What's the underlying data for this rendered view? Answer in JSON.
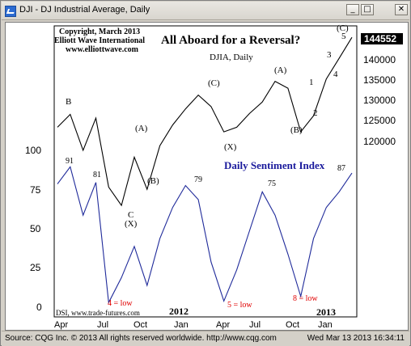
{
  "window": {
    "title": "DJI - DJ Industrial Average, Daily",
    "buttons": {
      "minimize": "_",
      "maximize": "□",
      "close": "✕"
    }
  },
  "header": {
    "copyright": "Copyright, March 2013",
    "company": "Elliott Wave International",
    "website": "www.elliottwave.com",
    "headline": "All Aboard for a Reversal?",
    "subtitle": "DJIA, Daily"
  },
  "price_axis": {
    "ticks": [
      "140000",
      "135000",
      "130000",
      "125000",
      "120000"
    ],
    "last_price": "144552"
  },
  "sentiment_axis": {
    "ticks": [
      "100",
      "75",
      "50",
      "25",
      "0"
    ]
  },
  "wave_labels": {
    "b1": "B",
    "a1": "(A)",
    "b2": "(B)",
    "c1": "(C)",
    "x": "(X)",
    "a2": "(A)",
    "b3": "(B)",
    "w1": "1",
    "w2": "2",
    "w3": "3",
    "w4": "4",
    "w5": "5",
    "c2": "(C)",
    "c_low": "C",
    "x_low": "(X)"
  },
  "dsi": {
    "title": "Daily Sentiment Index",
    "peaks": [
      "91",
      "81",
      "79",
      "75",
      "87"
    ],
    "lows": [
      "4 = low",
      "5 = low",
      "8 = low"
    ],
    "source": "DSI, www.trade-futures.com"
  },
  "x_axis": {
    "months": [
      "Apr",
      "Jul",
      "Oct",
      "Jan",
      "Apr",
      "Jul",
      "Oct",
      "Jan"
    ],
    "years": [
      "2012",
      "2013"
    ]
  },
  "status": {
    "left": "Source: CQG Inc. © 2013 All rights reserved worldwide. http://www.cqg.com",
    "right": "Wed Mar 13 2013 16:34:11"
  },
  "colors": {
    "price": "#000000",
    "sentiment": "#1f2a9a",
    "low_labels": "#e00000",
    "dsi_title": "#1a1a9c"
  },
  "chart_data": [
    {
      "type": "line",
      "name": "DJIA, Daily",
      "x": [
        "2011-04",
        "2011-05",
        "2011-06",
        "2011-07",
        "2011-08",
        "2011-09",
        "2011-10",
        "2011-11",
        "2011-12",
        "2012-01",
        "2012-02",
        "2012-03",
        "2012-04",
        "2012-05",
        "2012-06",
        "2012-07",
        "2012-08",
        "2012-09",
        "2012-10",
        "2012-11",
        "2012-12",
        "2013-01",
        "2013-02",
        "2013-03"
      ],
      "y": [
        125000,
        127800,
        120000,
        127000,
        112000,
        108000,
        118500,
        111500,
        121000,
        125500,
        129000,
        132000,
        129500,
        124000,
        125000,
        128000,
        130500,
        135000,
        133500,
        124000,
        127500,
        135500,
        140000,
        144552
      ],
      "ylim": [
        114000,
        146000
      ]
    },
    {
      "type": "line",
      "name": "Daily Sentiment Index",
      "x": [
        "2011-04",
        "2011-05",
        "2011-06",
        "2011-07",
        "2011-08",
        "2011-09",
        "2011-10",
        "2011-11",
        "2011-12",
        "2012-01",
        "2012-02",
        "2012-03",
        "2012-04",
        "2012-05",
        "2012-06",
        "2012-07",
        "2012-08",
        "2012-09",
        "2012-10",
        "2012-11",
        "2012-12",
        "2013-01",
        "2013-02",
        "2013-03"
      ],
      "y": [
        80,
        91,
        60,
        81,
        4,
        20,
        40,
        15,
        45,
        65,
        79,
        70,
        30,
        5,
        25,
        50,
        75,
        60,
        35,
        8,
        45,
        65,
        75,
        87
      ],
      "ylim": [
        0,
        100
      ]
    }
  ]
}
